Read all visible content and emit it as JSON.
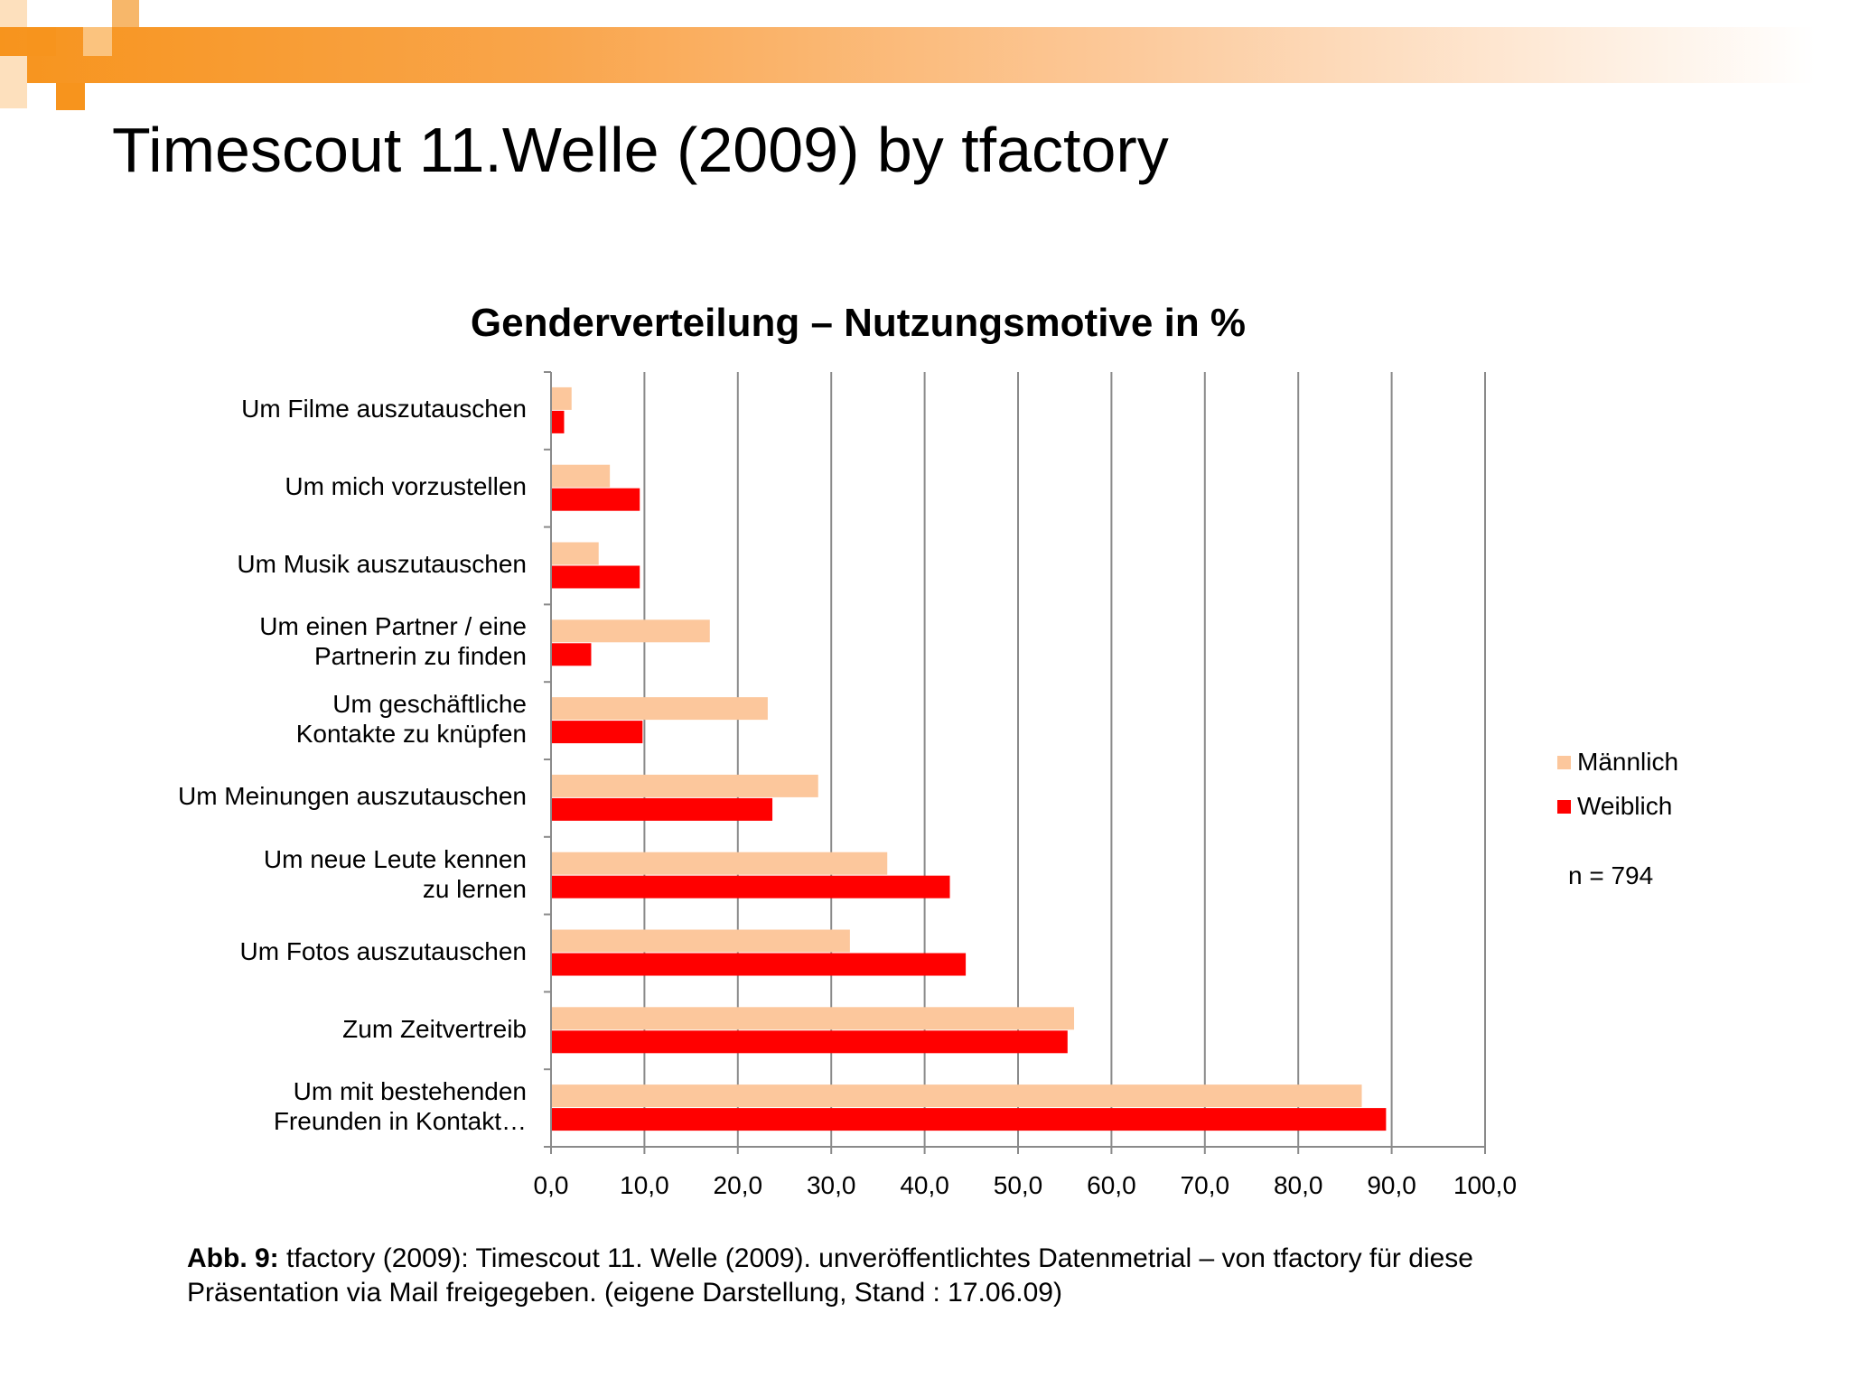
{
  "slide": {
    "title": "Timescout 11.Welle (2009) by tfactory",
    "accent_color": "#f7941d"
  },
  "chart_data": {
    "type": "bar",
    "orientation": "horizontal",
    "title": "Genderverteilung – Nutzungsmotive in %",
    "categories": [
      "Um Filme auszutauschen",
      "Um mich vorzustellen",
      "Um Musik auszutauschen",
      "Um einen Partner / eine\nPartnerin zu finden",
      "Um geschäftliche\nKontakte zu knüpfen",
      "Um Meinungen auszutauschen",
      "Um neue Leute kennen\nzu lernen",
      "Um Fotos auszutauschen",
      "Zum Zeitvertreib",
      "Um mit bestehenden\nFreunden in Kontakt…"
    ],
    "series": [
      {
        "name": "Männlich",
        "color": "#fcc79c",
        "values": [
          2.2,
          6.3,
          5.1,
          17.0,
          23.2,
          28.6,
          36.0,
          32.0,
          56.0,
          86.8
        ]
      },
      {
        "name": "Weiblich",
        "color": "#ff0000",
        "values": [
          1.4,
          9.5,
          9.5,
          4.3,
          9.8,
          23.7,
          42.7,
          44.4,
          55.3,
          89.4
        ]
      }
    ],
    "xlim": [
      0,
      100
    ],
    "x_ticks": [
      "0,0",
      "10,0",
      "20,0",
      "30,0",
      "40,0",
      "50,0",
      "60,0",
      "70,0",
      "80,0",
      "90,0",
      "100,0"
    ],
    "grid": true,
    "legend_position": "right",
    "note": "n = 794"
  },
  "caption": {
    "label": "Abb. 9:",
    "text": " tfactory (2009): Timescout 11. Welle (2009). unveröffentlichtes Datenmetrial – von tfactory für diese Präsentation via Mail freigegeben. (eigene Darstellung, Stand : 17.06.09)"
  }
}
